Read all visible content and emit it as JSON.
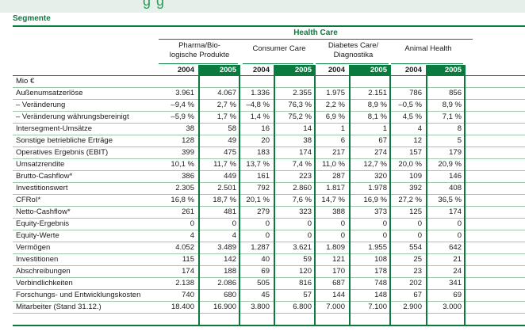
{
  "header": {
    "section_title": "Segmente",
    "top_fragment": "g g",
    "group_title": "Health Care",
    "unit_label": "Mio €",
    "groups": [
      {
        "name": "Pharma/Bio-\nlogische Produkte"
      },
      {
        "name": "Consumer Care"
      },
      {
        "name": "Diabetes Care/\nDiagnostika"
      },
      {
        "name": "Animal Health"
      }
    ],
    "years": [
      "2004",
      "2005",
      "2004",
      "2005",
      "2004",
      "2005",
      "2004",
      "2005"
    ]
  },
  "colors": {
    "accent": "#0a7a3e",
    "row_rule": "#9fc7ad",
    "highlight_text": "#ffffff"
  },
  "rows": [
    {
      "label": "Außenumsatzerlöse",
      "values": [
        "3.961",
        "4.067",
        "1.336",
        "2.355",
        "1.975",
        "2.151",
        "786",
        "856"
      ]
    },
    {
      "label": "– Veränderung",
      "values": [
        "–9,4 %",
        "2,7 %",
        "–4,8 %",
        "76,3 %",
        "2,2 %",
        "8,9 %",
        "–0,5 %",
        "8,9 %"
      ]
    },
    {
      "label": "– Veränderung währungsbereinigt",
      "values": [
        "–5,9 %",
        "1,7 %",
        "1,4 %",
        "75,2 %",
        "6,9 %",
        "8,1 %",
        "4,5 %",
        "7,1 %"
      ]
    },
    {
      "label": "Intersegment-Umsätze",
      "values": [
        "38",
        "58",
        "16",
        "14",
        "1",
        "1",
        "4",
        "8"
      ]
    },
    {
      "label": "Sonstige betriebliche Erträge",
      "values": [
        "128",
        "49",
        "20",
        "38",
        "6",
        "67",
        "12",
        "5"
      ]
    },
    {
      "label": "Operatives Ergebnis (EBIT)",
      "values": [
        "399",
        "475",
        "183",
        "174",
        "217",
        "274",
        "157",
        "179"
      ]
    },
    {
      "label": "Umsatzrendite",
      "values": [
        "10,1 %",
        "11,7 %",
        "13,7 %",
        "7,4 %",
        "11,0 %",
        "12,7 %",
        "20,0 %",
        "20,9 %"
      ]
    },
    {
      "label": "Brutto-Cashflow*",
      "values": [
        "386",
        "449",
        "161",
        "223",
        "287",
        "320",
        "109",
        "146"
      ]
    },
    {
      "label": "Investitionswert",
      "values": [
        "2.305",
        "2.501",
        "792",
        "2.860",
        "1.817",
        "1.978",
        "392",
        "408"
      ]
    },
    {
      "label": "CFRoI*",
      "values": [
        "16,8 %",
        "18,7 %",
        "20,1 %",
        "7,6 %",
        "14,7 %",
        "16,9 %",
        "27,2 %",
        "36,5 %"
      ]
    },
    {
      "label": "Netto-Cashflow*",
      "values": [
        "261",
        "481",
        "279",
        "323",
        "388",
        "373",
        "125",
        "174"
      ]
    },
    {
      "label": "Equity-Ergebnis",
      "values": [
        "0",
        "0",
        "0",
        "0",
        "0",
        "0",
        "0",
        "0"
      ]
    },
    {
      "label": "Equity-Werte",
      "values": [
        "4",
        "4",
        "0",
        "0",
        "0",
        "0",
        "0",
        "0"
      ]
    },
    {
      "label": "Vermögen",
      "values": [
        "4.052",
        "3.489",
        "1.287",
        "3.621",
        "1.809",
        "1.955",
        "554",
        "642"
      ]
    },
    {
      "label": "Investitionen",
      "values": [
        "115",
        "142",
        "40",
        "59",
        "121",
        "108",
        "25",
        "21"
      ]
    },
    {
      "label": "Abschreibungen",
      "values": [
        "174",
        "188",
        "69",
        "120",
        "170",
        "178",
        "23",
        "24"
      ]
    },
    {
      "label": "Verbindlichkeiten",
      "values": [
        "2.138",
        "2.086",
        "505",
        "816",
        "687",
        "748",
        "202",
        "341"
      ]
    },
    {
      "label": "Forschungs- und Entwicklungskosten",
      "values": [
        "740",
        "680",
        "45",
        "57",
        "144",
        "148",
        "67",
        "69"
      ]
    },
    {
      "label": "Mitarbeiter (Stand 31.12.)",
      "values": [
        "18.400",
        "16.900",
        "3.800",
        "6.800",
        "7.000",
        "7.100",
        "2.900",
        "3.000"
      ]
    }
  ]
}
